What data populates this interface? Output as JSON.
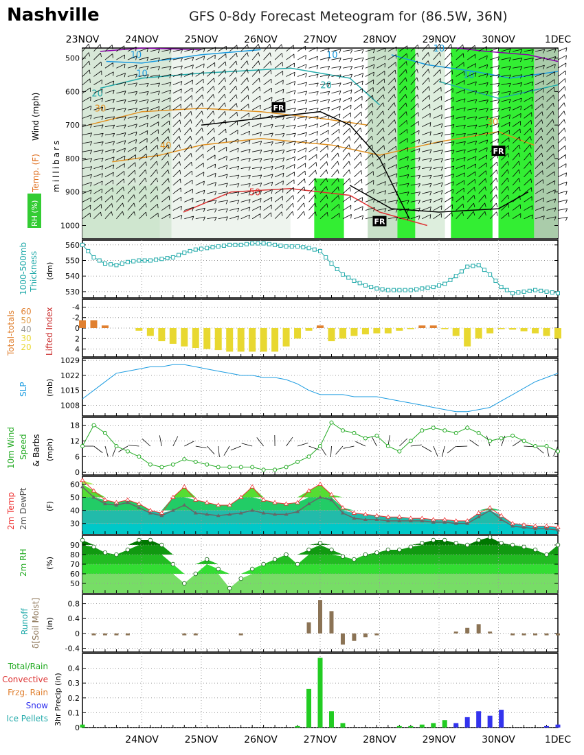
{
  "header": {
    "city": "Nashville",
    "title": "GFS 0-8dy Forecast Meteogram for (86.5W, 36N)"
  },
  "top_dates": [
    "23NOV",
    "24NOV",
    "25NOV",
    "26NOV",
    "27NOV",
    "28NOV",
    "29NOV",
    "30NOV",
    "1DEC"
  ],
  "bottom_dates": [
    "24NOV",
    "25NOV",
    "26NOV",
    "27NOV",
    "28NOV",
    "29NOV",
    "30NOV",
    "1DEC"
  ],
  "panels": {
    "upper": {
      "ylabel_left_1": "Wind (mph)",
      "ylabel_left_2": "Temp. (F)",
      "ylabel_left_3": "RH (%)",
      "ylabel_unit": "millibars",
      "ticks": [
        "500",
        "600",
        "700",
        "800",
        "900",
        "1000"
      ],
      "contour_labels": [
        "10",
        "10",
        "20",
        "30",
        "40",
        "50",
        "10",
        "20",
        "30",
        "10",
        "10"
      ],
      "fr_labels": [
        "FR",
        "FR",
        "FR"
      ]
    },
    "thickness": {
      "label1": "1000-500mb",
      "label2": "Thickness",
      "unit": "(dm)",
      "ticks": [
        "560",
        "550",
        "540",
        "530"
      ]
    },
    "indices": {
      "label_tt": "Total-totals",
      "label_li": "Lifted Index",
      "tt_values": [
        "60",
        "50",
        "40",
        "30",
        "20"
      ],
      "ticks": [
        "-4",
        "-2",
        "0",
        "2",
        "4"
      ]
    },
    "slp": {
      "label": "SLP",
      "unit": "(mb)",
      "ticks": [
        "1029",
        "1022",
        "1015",
        "1008"
      ]
    },
    "wind10": {
      "label1": "10m Wind",
      "label2": "Speed",
      "label3": "& Barbs",
      "unit": "(mph)",
      "ticks": [
        "18",
        "12",
        "6",
        "0"
      ]
    },
    "temp": {
      "label1": "2m Temp",
      "label2": "2m DewPt",
      "unit": "(F)",
      "ticks": [
        "60",
        "50",
        "40",
        "30"
      ]
    },
    "rh": {
      "label1": "2m RH",
      "unit": "(%)",
      "ticks": [
        "90",
        "80",
        "70",
        "60",
        "50"
      ]
    },
    "runoff": {
      "label1": "Runoff",
      "label2": "δ[Soil Moist]",
      "unit": "(in)",
      "ticks": [
        "0.8",
        "0.4",
        "0",
        "-0.4"
      ]
    },
    "precip": {
      "legend": [
        "Total/Rain",
        "Convective",
        "Frzg. Rain",
        "Snow",
        "Ice Pellets"
      ],
      "unit": "3hr Precip (in)",
      "ticks": [
        "0.4",
        "0.3",
        "0.2",
        "0.1",
        "0"
      ]
    }
  },
  "colors": {
    "thickness": "#22aaaa",
    "slp": "#1a9be0",
    "wind": "#22aa22",
    "temp": "#ee3333",
    "dew": "#666666",
    "li_bar": "#e8d830",
    "tt_bar": "#e08030",
    "runoff": "#8b7355",
    "rain": "#22cc22",
    "snow": "#3333ee"
  },
  "chart_data": {
    "type": "line",
    "time_step_hours": 6,
    "thickness": [
      560,
      552,
      548,
      547,
      549,
      550,
      550,
      551,
      552,
      555,
      557,
      558,
      559,
      560,
      560,
      561,
      561,
      560,
      559,
      559,
      558,
      556,
      548,
      541,
      537,
      534,
      532,
      531,
      531,
      531,
      532,
      533,
      535,
      540,
      546,
      547,
      541,
      533,
      529,
      530,
      531,
      530,
      529
    ],
    "lifted_index": [
      -1.5,
      -1.5,
      -0.5,
      0,
      0,
      0.5,
      1.5,
      2.5,
      3,
      3.5,
      3.8,
      4,
      4.2,
      4.5,
      4.5,
      4.5,
      4.5,
      4.5,
      3.5,
      2,
      0.5,
      -0.5,
      2.5,
      2,
      1.5,
      1.2,
      1,
      1,
      0.5,
      0.2,
      -0.5,
      -0.5,
      0.2,
      1.5,
      3.5,
      2,
      1,
      0.2,
      0.3,
      0.6,
      1,
      1.5,
      2
    ],
    "slp": [
      1011,
      1015,
      1019,
      1023,
      1024,
      1025,
      1026,
      1026,
      1027,
      1027,
      1026,
      1025,
      1024,
      1023,
      1022,
      1022,
      1021,
      1021,
      1020,
      1018,
      1015,
      1013,
      1013,
      1013,
      1012,
      1012,
      1012,
      1011,
      1010,
      1009,
      1008,
      1007,
      1006,
      1005,
      1005,
      1006,
      1007,
      1010,
      1013,
      1016,
      1019,
      1021,
      1023
    ],
    "wind10": [
      10,
      18,
      15,
      10,
      8,
      6,
      3,
      2,
      3,
      5,
      4,
      3,
      2,
      2,
      2,
      2,
      1,
      1,
      2,
      4,
      6,
      10,
      19,
      16,
      15,
      13,
      14,
      10,
      8,
      12,
      16,
      17,
      16,
      15,
      17,
      15,
      12,
      13,
      14,
      12,
      10,
      10,
      8
    ],
    "temp2m": [
      63,
      55,
      48,
      46,
      48,
      45,
      40,
      38,
      50,
      58,
      48,
      46,
      44,
      44,
      50,
      58,
      48,
      46,
      45,
      46,
      55,
      60,
      52,
      42,
      38,
      37,
      36,
      35,
      35,
      34,
      34,
      33,
      33,
      32,
      32,
      38,
      42,
      36,
      30,
      29,
      28,
      28,
      27
    ],
    "dew2m": [
      58,
      50,
      45,
      44,
      46,
      42,
      38,
      36,
      40,
      44,
      38,
      37,
      36,
      37,
      38,
      40,
      38,
      37,
      37,
      39,
      45,
      50,
      48,
      38,
      34,
      33,
      33,
      32,
      32,
      32,
      32,
      31,
      31,
      30,
      30,
      35,
      40,
      33,
      28,
      27,
      26,
      26,
      25
    ],
    "rh2m": [
      95,
      88,
      82,
      80,
      85,
      95,
      95,
      90,
      70,
      50,
      60,
      75,
      65,
      45,
      55,
      65,
      70,
      75,
      80,
      70,
      85,
      92,
      85,
      78,
      75,
      80,
      82,
      85,
      85,
      88,
      92,
      95,
      95,
      92,
      90,
      95,
      98,
      92,
      90,
      88,
      85,
      80,
      90
    ],
    "runoff": [
      0,
      -0.05,
      -0.05,
      -0.05,
      -0.05,
      0,
      0,
      0,
      0,
      -0.05,
      -0.05,
      0,
      0,
      0,
      -0.05,
      0,
      0,
      0,
      0,
      0,
      0.3,
      0.9,
      0.6,
      -0.3,
      -0.2,
      -0.1,
      -0.05,
      0,
      0,
      0,
      0,
      0,
      0,
      0.05,
      0.15,
      0.25,
      0.05,
      0,
      -0.05,
      -0.05,
      -0.05,
      -0.05,
      -0.05
    ],
    "precip_total": [
      0.02,
      0,
      0,
      0,
      0,
      0,
      0,
      0,
      0,
      0,
      0,
      0,
      0,
      0,
      0,
      0,
      0,
      0,
      0,
      0.01,
      0.26,
      0.47,
      0.11,
      0.03,
      0,
      0,
      0,
      0,
      0.01,
      0.01,
      0.02,
      0.03,
      0.05,
      0.02,
      0,
      0,
      0,
      0,
      0,
      0,
      0,
      0,
      0
    ],
    "precip_snow": [
      0,
      0,
      0,
      0,
      0,
      0,
      0,
      0,
      0,
      0,
      0,
      0,
      0,
      0,
      0,
      0,
      0,
      0,
      0,
      0,
      0,
      0,
      0,
      0,
      0,
      0,
      0,
      0,
      0,
      0,
      0,
      0,
      0,
      0.03,
      0.07,
      0.11,
      0.08,
      0.12,
      0,
      0,
      0,
      0.01,
      0.02
    ]
  }
}
